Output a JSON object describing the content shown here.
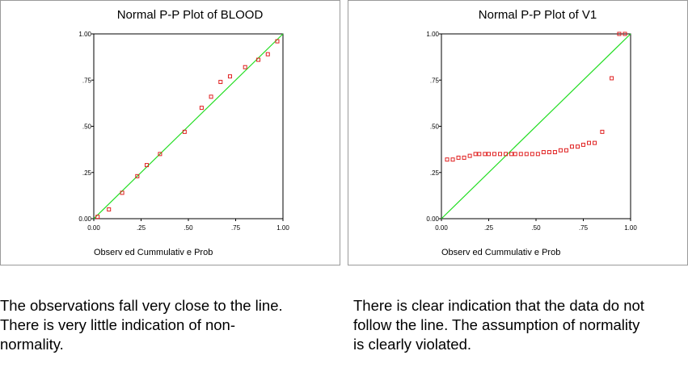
{
  "chart_data": [
    {
      "type": "scatter",
      "title": "Normal P-P Plot of BLOOD",
      "xlabel": "Observ ed Cummulativ e Prob",
      "ylabel": "",
      "xlim": [
        0,
        1
      ],
      "ylim": [
        0,
        1
      ],
      "xticks": [
        "0.00",
        ".25",
        ".50",
        ".75",
        "1.00"
      ],
      "yticks": [
        "0.00",
        ".25",
        ".50",
        ".75",
        "1.00"
      ],
      "grid": false,
      "reference_line": {
        "from": [
          0,
          0
        ],
        "to": [
          1,
          1
        ],
        "color": "#22dd22"
      },
      "points": [
        {
          "x": 0.02,
          "y": 0.01
        },
        {
          "x": 0.08,
          "y": 0.05
        },
        {
          "x": 0.15,
          "y": 0.14
        },
        {
          "x": 0.23,
          "y": 0.23
        },
        {
          "x": 0.28,
          "y": 0.29
        },
        {
          "x": 0.35,
          "y": 0.35
        },
        {
          "x": 0.48,
          "y": 0.47
        },
        {
          "x": 0.57,
          "y": 0.6
        },
        {
          "x": 0.62,
          "y": 0.66
        },
        {
          "x": 0.67,
          "y": 0.74
        },
        {
          "x": 0.72,
          "y": 0.77
        },
        {
          "x": 0.8,
          "y": 0.82
        },
        {
          "x": 0.87,
          "y": 0.86
        },
        {
          "x": 0.92,
          "y": 0.89
        },
        {
          "x": 0.97,
          "y": 0.96
        }
      ]
    },
    {
      "type": "scatter",
      "title": "Normal P-P Plot of V1",
      "xlabel": "Observ ed Cummulativ e Prob",
      "ylabel": "",
      "xlim": [
        0,
        1
      ],
      "ylim": [
        0,
        1
      ],
      "xticks": [
        "0.00",
        ".25",
        ".50",
        ".75",
        "1.00"
      ],
      "yticks": [
        "0.00",
        ".25",
        ".50",
        ".75",
        "1.00"
      ],
      "grid": false,
      "reference_line": {
        "from": [
          0,
          0
        ],
        "to": [
          1,
          1
        ],
        "color": "#22dd22"
      },
      "points": [
        {
          "x": 0.03,
          "y": 0.32
        },
        {
          "x": 0.06,
          "y": 0.32
        },
        {
          "x": 0.09,
          "y": 0.33
        },
        {
          "x": 0.12,
          "y": 0.33
        },
        {
          "x": 0.15,
          "y": 0.34
        },
        {
          "x": 0.18,
          "y": 0.35
        },
        {
          "x": 0.2,
          "y": 0.35
        },
        {
          "x": 0.23,
          "y": 0.35
        },
        {
          "x": 0.25,
          "y": 0.35
        },
        {
          "x": 0.28,
          "y": 0.35
        },
        {
          "x": 0.31,
          "y": 0.35
        },
        {
          "x": 0.34,
          "y": 0.35
        },
        {
          "x": 0.37,
          "y": 0.35
        },
        {
          "x": 0.39,
          "y": 0.35
        },
        {
          "x": 0.42,
          "y": 0.35
        },
        {
          "x": 0.45,
          "y": 0.35
        },
        {
          "x": 0.48,
          "y": 0.35
        },
        {
          "x": 0.51,
          "y": 0.35
        },
        {
          "x": 0.54,
          "y": 0.36
        },
        {
          "x": 0.57,
          "y": 0.36
        },
        {
          "x": 0.6,
          "y": 0.36
        },
        {
          "x": 0.63,
          "y": 0.37
        },
        {
          "x": 0.66,
          "y": 0.37
        },
        {
          "x": 0.69,
          "y": 0.39
        },
        {
          "x": 0.72,
          "y": 0.39
        },
        {
          "x": 0.75,
          "y": 0.4
        },
        {
          "x": 0.78,
          "y": 0.41
        },
        {
          "x": 0.81,
          "y": 0.41
        },
        {
          "x": 0.85,
          "y": 0.47
        },
        {
          "x": 0.9,
          "y": 0.76
        },
        {
          "x": 0.94,
          "y": 1.0
        },
        {
          "x": 0.97,
          "y": 1.0
        }
      ]
    }
  ],
  "captions": {
    "left": [
      "The observations fall very close to the line.",
      "There is very little indication of non-",
      "normality."
    ],
    "right": [
      "There is clear indication that the data do not",
      "follow the line.  The assumption of normality",
      "is clearly violated."
    ]
  },
  "colors": {
    "marker": "#e02020",
    "reference_line": "#22dd22",
    "axis": "#000000"
  }
}
